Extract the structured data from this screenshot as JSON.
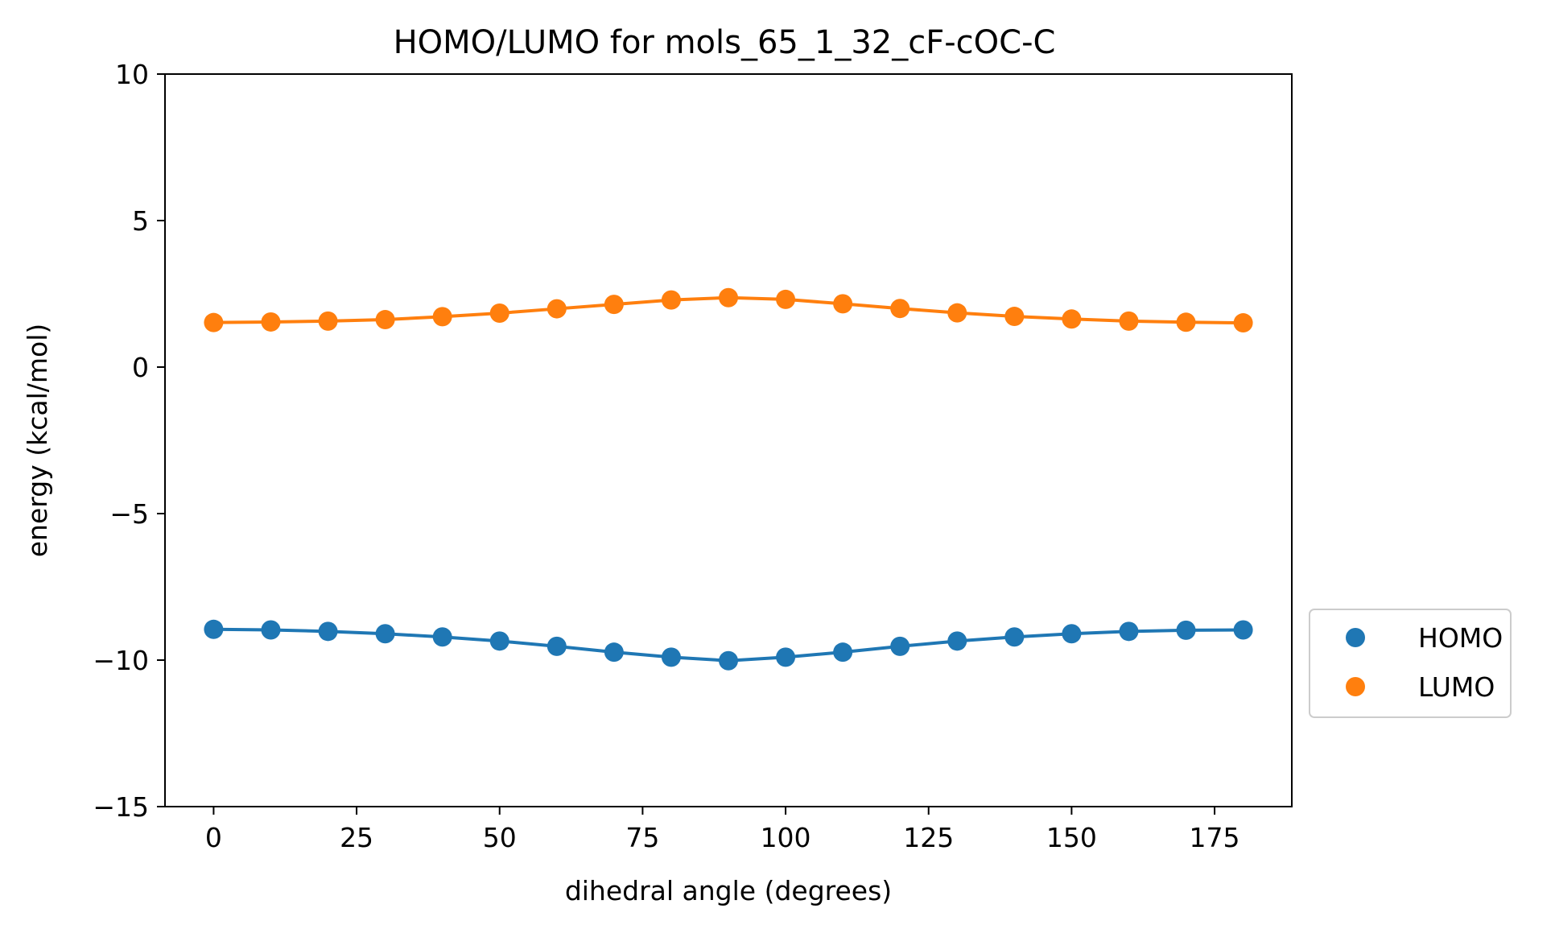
{
  "chart_data": {
    "type": "line",
    "title": "HOMO/LUMO for mols_65_1_32_cF-cOC-C",
    "xlabel": "dihedral angle (degrees)",
    "ylabel": "energy (kcal/mol)",
    "xlim": [
      -8.5,
      188.5
    ],
    "ylim": [
      -15,
      10
    ],
    "xticks": [
      0,
      25,
      50,
      75,
      100,
      125,
      150,
      175
    ],
    "yticks": [
      -15,
      -10,
      -5,
      0,
      5,
      10
    ],
    "ytick_labels": [
      "−15",
      "−10",
      "−5",
      "0",
      "5",
      "10"
    ],
    "grid": false,
    "legend": {
      "placement": "outside-right",
      "entries": [
        "HOMO",
        "LUMO"
      ]
    },
    "x": [
      0,
      10,
      20,
      30,
      40,
      50,
      60,
      70,
      80,
      90,
      100,
      110,
      120,
      130,
      140,
      150,
      160,
      170,
      180
    ],
    "series": [
      {
        "name": "HOMO",
        "color": "#1f77b4",
        "values": [
          -8.95,
          -8.97,
          -9.02,
          -9.1,
          -9.21,
          -9.35,
          -9.53,
          -9.73,
          -9.9,
          -10.02,
          -9.9,
          -9.73,
          -9.53,
          -9.35,
          -9.21,
          -9.1,
          -9.02,
          -8.98,
          -8.97
        ]
      },
      {
        "name": "LUMO",
        "color": "#ff7f0e",
        "values": [
          1.52,
          1.54,
          1.57,
          1.62,
          1.72,
          1.84,
          1.99,
          2.14,
          2.29,
          2.37,
          2.31,
          2.16,
          2.0,
          1.85,
          1.73,
          1.64,
          1.57,
          1.53,
          1.51
        ]
      }
    ]
  }
}
